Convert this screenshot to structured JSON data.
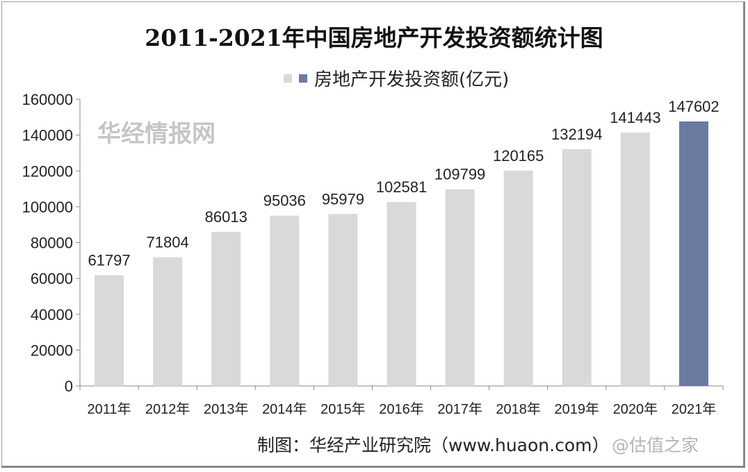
{
  "chart_data": {
    "type": "bar",
    "title": "2011-2021年中国房地产开发投资额统计图",
    "legend": {
      "label": "房地产开发投资额(亿元)",
      "position": "top-center"
    },
    "categories": [
      "2011年",
      "2012年",
      "2013年",
      "2014年",
      "2015年",
      "2016年",
      "2017年",
      "2018年",
      "2019年",
      "2020年",
      "2021年"
    ],
    "values": [
      61797,
      71804,
      86013,
      95036,
      95979,
      102581,
      109799,
      120165,
      132194,
      141443,
      147602
    ],
    "ylim": [
      0,
      160000
    ],
    "yticks": [
      0,
      20000,
      40000,
      60000,
      80000,
      100000,
      120000,
      140000,
      160000
    ],
    "xlabel": "",
    "ylabel": "",
    "colors": {
      "default": "#d9d9d9",
      "highlight": "#6b7aa1"
    }
  },
  "footer": "制图：华经产业研究院（www.huaon.com）",
  "watermark": {
    "site": "华经情报网",
    "account": "@估值之家"
  }
}
